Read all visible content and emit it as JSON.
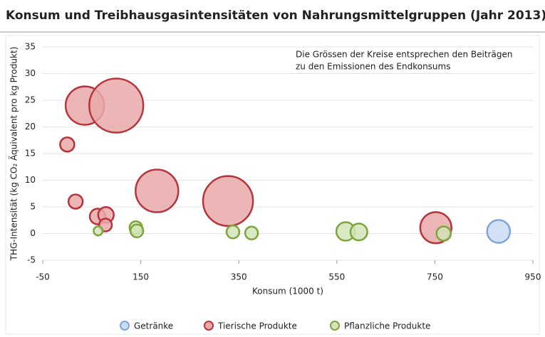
{
  "chart_data": {
    "type": "bubble",
    "title": "Konsum und Treibhausgasintensitäten von Nahrungsmittelgruppen (Jahr 2013)",
    "annotation": [
      "Die Grössen der Kreise entsprechen den Beiträgen",
      "zu den Emissionen des Endkonsums"
    ],
    "x_label": "Konsum (1000 t)",
    "y_label": "THG-Intensität (kg CO₂ Äquivalent pro kg Produkt)",
    "xlim": [
      -50,
      950
    ],
    "xticks": [
      -50,
      150,
      350,
      550,
      750,
      950
    ],
    "ylim": [
      -5,
      35
    ],
    "yticks": [
      -5,
      0,
      5,
      10,
      15,
      20,
      25,
      30,
      35
    ],
    "grid": true,
    "series": [
      {
        "name": "Getränke",
        "color": "#7ea6da",
        "fill": "#cadcf3",
        "x": [
          880
        ],
        "values": [
          0.4
        ],
        "sizes": [
          26
        ]
      },
      {
        "name": "Tierische Produkte",
        "color": "#b7343d",
        "fill": "#e9a9a9",
        "x": [
          36,
          100,
          0,
          17,
          183,
          328,
          62,
          79,
          78,
          752
        ],
        "values": [
          24,
          24,
          16.7,
          6,
          8,
          6.1,
          3.2,
          3.5,
          1.6,
          1.1
        ],
        "sizes": [
          73,
          144,
          10,
          10,
          90,
          123,
          12,
          12,
          8,
          48
        ]
      },
      {
        "name": "Pflanzliche Produkte",
        "color": "#7ca63c",
        "fill": "#d4e4b8",
        "x": [
          63,
          140,
          142,
          338,
          376,
          568,
          595,
          768
        ],
        "values": [
          0.5,
          1.1,
          0.5,
          0.3,
          0.1,
          0.4,
          0.3,
          0
        ],
        "sizes": [
          4,
          8,
          8,
          8,
          8,
          17,
          14,
          10
        ]
      }
    ]
  }
}
